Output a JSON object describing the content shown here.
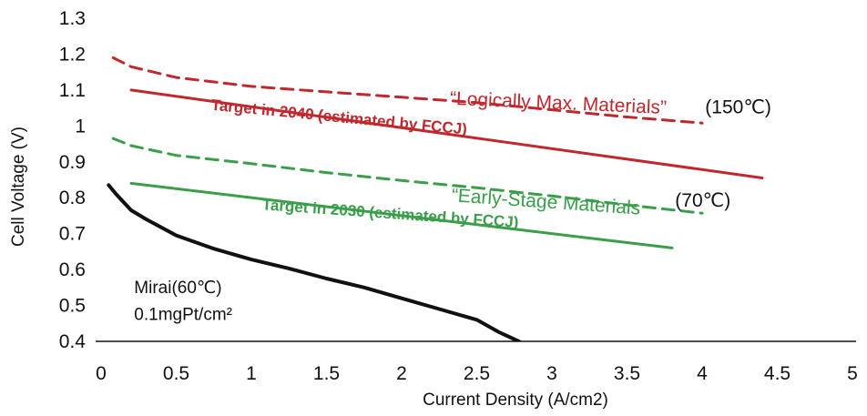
{
  "chart_data": {
    "type": "line",
    "title": "",
    "xlabel": "Current Density (A/cm2)",
    "ylabel": "Cell Voltage (V)",
    "xlim": [
      0,
      5
    ],
    "ylim": [
      0.4,
      1.3
    ],
    "xticks": [
      0,
      0.5,
      1,
      1.5,
      2,
      2.5,
      3,
      3.5,
      4,
      4.5,
      5
    ],
    "xtick_labels": [
      "0",
      "0.5",
      "1",
      "1.5",
      "2",
      "2.5",
      "3",
      "3.5",
      "4",
      "4.5",
      "5"
    ],
    "yticks": [
      0.4,
      0.5,
      0.6,
      0.7,
      0.8,
      0.9,
      1.0,
      1.1,
      1.2,
      1.3
    ],
    "ytick_labels": [
      "0.4",
      "0.5",
      "0.6",
      "0.7",
      "0.8",
      "0.9",
      "1",
      "1.1",
      "1.2",
      "1.3"
    ],
    "grid": false,
    "series": [
      {
        "color": "#c0282d",
        "style": "dashed",
        "points": [
          [
            0.08,
            1.19
          ],
          [
            0.2,
            1.165
          ],
          [
            0.5,
            1.135
          ],
          [
            1.0,
            1.11
          ],
          [
            1.5,
            1.095
          ],
          [
            2.0,
            1.08
          ],
          [
            2.5,
            1.065
          ],
          [
            3.0,
            1.045
          ],
          [
            3.5,
            1.025
          ],
          [
            4.0,
            1.008
          ]
        ]
      },
      {
        "color": "#c0282d",
        "style": "solid",
        "points": [
          [
            0.2,
            1.1
          ],
          [
            4.4,
            0.855
          ]
        ]
      },
      {
        "color": "#3a9e4a",
        "style": "dashed",
        "points": [
          [
            0.08,
            0.965
          ],
          [
            0.2,
            0.945
          ],
          [
            0.5,
            0.918
          ],
          [
            1.0,
            0.895
          ],
          [
            1.5,
            0.87
          ],
          [
            2.0,
            0.848
          ],
          [
            2.5,
            0.828
          ],
          [
            3.0,
            0.805
          ],
          [
            3.5,
            0.78
          ],
          [
            4.0,
            0.757
          ]
        ]
      },
      {
        "color": "#3a9e4a",
        "style": "solid",
        "points": [
          [
            0.2,
            0.84
          ],
          [
            3.8,
            0.66
          ]
        ]
      },
      {
        "color": "#111111",
        "style": "solid",
        "points": [
          [
            0.05,
            0.835
          ],
          [
            0.1,
            0.81
          ],
          [
            0.2,
            0.765
          ],
          [
            0.3,
            0.74
          ],
          [
            0.5,
            0.695
          ],
          [
            0.75,
            0.658
          ],
          [
            1.0,
            0.628
          ],
          [
            1.25,
            0.603
          ],
          [
            1.5,
            0.575
          ],
          [
            1.75,
            0.55
          ],
          [
            2.0,
            0.52
          ],
          [
            2.25,
            0.49
          ],
          [
            2.5,
            0.46
          ],
          [
            2.65,
            0.425
          ],
          [
            2.78,
            0.4
          ]
        ]
      }
    ],
    "annotations": [
      {
        "text": "“Logically Max. Materials”",
        "color": "#c0282d",
        "x": 2.32,
        "y": 1.06,
        "size": 21,
        "weight": "normal",
        "rotate": 2.5
      },
      {
        "text": "(150℃)",
        "color": "#111111",
        "x": 4.02,
        "y": 1.035,
        "size": 21,
        "weight": "normal",
        "rotate": 0
      },
      {
        "text": "Target in 2040 (estimated by FCCJ)",
        "color": "#c0282d",
        "x": 0.73,
        "y": 1.045,
        "size": 17,
        "weight": "bold",
        "rotate": 5.5
      },
      {
        "text": "“Early-Stage Materials",
        "color": "#3a9e4a",
        "x": 2.33,
        "y": 0.79,
        "size": 21,
        "weight": "normal",
        "rotate": 4
      },
      {
        "text": "(70℃)",
        "color": "#111111",
        "x": 3.82,
        "y": 0.775,
        "size": 21,
        "weight": "normal",
        "rotate": 0
      },
      {
        "text": "Target in 2030 (estimated by FCCJ)",
        "color": "#3a9e4a",
        "x": 1.07,
        "y": 0.767,
        "size": 17,
        "weight": "bold",
        "rotate": 4
      },
      {
        "text": "Mirai(60℃)",
        "color": "#111111",
        "x": 0.22,
        "y": 0.535,
        "size": 19,
        "weight": "normal",
        "rotate": 0
      },
      {
        "text": "0.1mgPt/cm²",
        "color": "#111111",
        "x": 0.22,
        "y": 0.46,
        "size": 19,
        "weight": "normal",
        "rotate": 0
      }
    ]
  }
}
